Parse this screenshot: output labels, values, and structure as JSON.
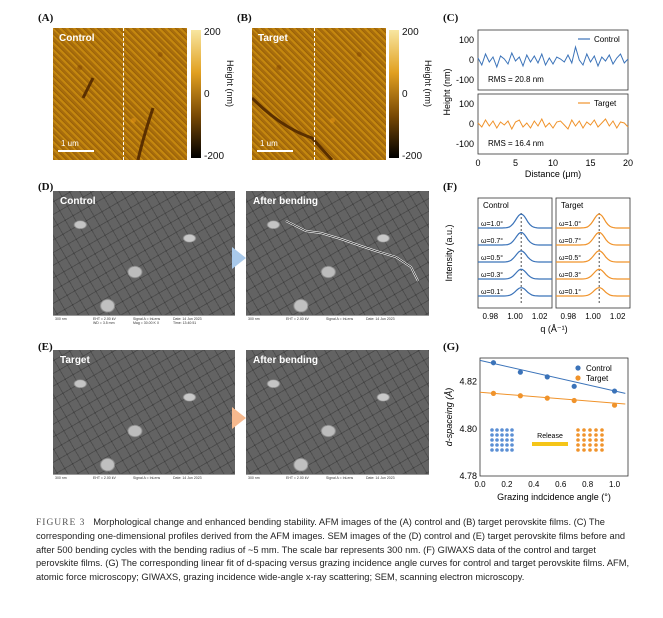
{
  "panel_labels": {
    "A": "(A)",
    "B": "(B)",
    "C": "(C)",
    "D": "(D)",
    "E": "(E)",
    "F": "(F)",
    "G": "(G)"
  },
  "afm": {
    "control_label": "Control",
    "target_label": "Target",
    "scale": "1 um",
    "colorbar_ticks": [
      "200",
      "0",
      "-200"
    ],
    "colorbar_title": "Height (nm)"
  },
  "sem": {
    "d_left": "Control",
    "d_right": "After bending",
    "e_left": "Target",
    "e_right": "After bending",
    "bar_scale": "300 nm",
    "bar_info": [
      "EHT = 2.00 kV",
      "WD = 3.5 mm",
      "Signal A = InLens",
      "Mag = 30.00 K X",
      "Date: 14 Jun 2023",
      "Time: 13:40:51"
    ]
  },
  "chart_data": [
    {
      "id": "C",
      "type": "line",
      "xlabel": "Distance (μm)",
      "ylabel": "Height (nm)",
      "xlim": [
        0,
        20
      ],
      "xticks": [
        "0",
        "5",
        "10",
        "15",
        "20"
      ],
      "yticks": [
        "100",
        "0",
        "-100"
      ],
      "series": [
        {
          "name": "Control",
          "color": "#3b73b9",
          "annotation": "RMS = 20.8 nm",
          "ylim": [
            -150,
            150
          ],
          "x": [
            0,
            0.5,
            1,
            1.5,
            2,
            2.5,
            3,
            3.5,
            4,
            4.5,
            5,
            5.5,
            6,
            6.5,
            7,
            7.5,
            8,
            8.5,
            9,
            9.5,
            10,
            10.5,
            11,
            11.5,
            12,
            12.5,
            13,
            13.5,
            14,
            14.5,
            15,
            15.5,
            16,
            16.5,
            17,
            17.5,
            18,
            18.5,
            19,
            19.5,
            20
          ],
          "y": [
            10,
            -25,
            30,
            -10,
            15,
            -35,
            20,
            5,
            -20,
            35,
            -5,
            15,
            -30,
            25,
            -10,
            20,
            -15,
            30,
            -25,
            10,
            -20,
            15,
            5,
            -10,
            25,
            -15,
            65,
            0,
            -25,
            30,
            -10,
            20,
            -30,
            15,
            -5,
            25,
            -20,
            10,
            30,
            -15,
            5
          ]
        },
        {
          "name": "Target",
          "color": "#f0932b",
          "annotation": "RMS = 16.4 nm",
          "ylim": [
            -150,
            150
          ],
          "x": [
            0,
            0.5,
            1,
            1.5,
            2,
            2.5,
            3,
            3.5,
            4,
            4.5,
            5,
            5.5,
            6,
            6.5,
            7,
            7.5,
            8,
            8.5,
            9,
            9.5,
            10,
            10.5,
            11,
            11.5,
            12,
            12.5,
            13,
            13.5,
            14,
            14.5,
            15,
            15.5,
            16,
            16.5,
            17,
            17.5,
            18,
            18.5,
            19,
            19.5,
            20
          ],
          "y": [
            5,
            -15,
            20,
            -10,
            15,
            -20,
            10,
            -5,
            15,
            -25,
            10,
            20,
            -15,
            5,
            -20,
            15,
            -10,
            25,
            -15,
            5,
            -20,
            10,
            15,
            -5,
            -25,
            20,
            -10,
            15,
            -20,
            10,
            -5,
            20,
            -15,
            5,
            25,
            -10,
            15,
            -20,
            10,
            5,
            -15
          ]
        }
      ]
    },
    {
      "id": "F",
      "type": "line",
      "xlabel": "q (Å⁻¹)",
      "ylabel": "Intensity (a.u.)",
      "xticks": [
        "0.98",
        "1.00",
        "1.02"
      ],
      "xlim": [
        0.97,
        1.03
      ],
      "panels": [
        {
          "title": "Control",
          "color": "#3b73b9",
          "peak": 1.005
        },
        {
          "title": "Target",
          "color": "#f0932b",
          "peak": 1.005
        }
      ],
      "curve_labels": [
        "ω=1.0°",
        "ω=0.7°",
        "ω=0.5°",
        "ω=0.3°",
        "ω=0.1°"
      ]
    },
    {
      "id": "G",
      "type": "scatter",
      "xlabel": "Grazing indcidence angle (°)",
      "ylabel": "d-spaceing (Å)",
      "xlim": [
        0,
        1.1
      ],
      "ylim": [
        4.78,
        4.83
      ],
      "xticks": [
        "0.0",
        "0.2",
        "0.4",
        "0.6",
        "0.8",
        "1.0"
      ],
      "yticks": [
        "4.82",
        "4.80",
        "4.78"
      ],
      "series": [
        {
          "name": "Control",
          "color": "#3b73b9",
          "x": [
            0.1,
            0.3,
            0.5,
            0.7,
            1.0
          ],
          "y": [
            4.828,
            4.824,
            4.822,
            4.818,
            4.816
          ],
          "fit": [
            4.829,
            4.815
          ]
        },
        {
          "name": "Target",
          "color": "#f0932b",
          "x": [
            0.1,
            0.3,
            0.5,
            0.7,
            1.0
          ],
          "y": [
            4.815,
            4.814,
            4.813,
            4.812,
            4.81
          ],
          "fit": [
            4.8155,
            4.8105
          ]
        }
      ],
      "inset_label": "Release"
    }
  ],
  "caption": {
    "head": "FIGURE 3",
    "text": "Morphological change and enhanced bending stability. AFM images of the (A) control and (B) target perovskite films. (C) The corresponding one-dimensional profiles derived from the AFM images. SEM images of the (D) control and (E) target perovskite films before and after 500 bending cycles with the bending radius of ~5 mm. The scale bar represents 300 nm. (F) GIWAXS data of the control and target perovskite films. (G) The corresponding linear fit of d-spacing versus grazing incidence angle curves for control and target perovskite films. AFM, atomic force microscopy; GIWAXS, grazing incidence wide-angle x-ray scattering; SEM, scanning electron microscopy."
  }
}
